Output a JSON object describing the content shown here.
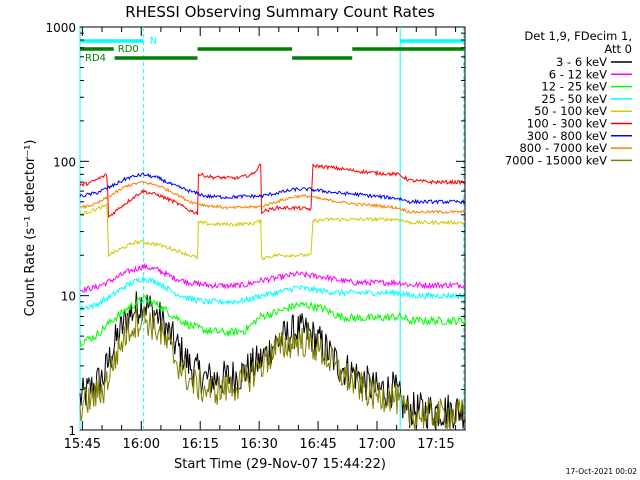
{
  "chart_data": {
    "type": "line",
    "title": "RHESSI Observing Summary Count Rates",
    "xlabel": "Start Time (29-Nov-07 15:44:22)",
    "ylabel": "Count Rate (s⁻¹ detector⁻¹)",
    "yscale": "log",
    "ylim": [
      1,
      1000
    ],
    "xlim_minutes": [
      0,
      98
    ],
    "y_ticks": [
      {
        "v": 1,
        "label": "1"
      },
      {
        "v": 10,
        "label": "10"
      },
      {
        "v": 100,
        "label": "100"
      },
      {
        "v": 1000,
        "label": "1000"
      }
    ],
    "x_ticks": [
      {
        "t": 0.6,
        "label": "15:45"
      },
      {
        "t": 15.6,
        "label": "16:00"
      },
      {
        "t": 30.6,
        "label": "16:15"
      },
      {
        "t": 45.6,
        "label": "16:30"
      },
      {
        "t": 60.6,
        "label": "16:45"
      },
      {
        "t": 75.6,
        "label": "17:00"
      },
      {
        "t": 90.6,
        "label": "17:15"
      }
    ],
    "legend_header": [
      "Det 1,9, FDecim 1,",
      "Att 0"
    ],
    "legend_position": "right",
    "footer": "17-Oct-2021 00:02",
    "flags": [
      {
        "label": "N",
        "color": "#00ffff",
        "row": 0,
        "segments": [
          [
            0,
            16.2
          ],
          [
            81.5,
            97.7
          ]
        ]
      },
      {
        "label": "RD0",
        "color": "#008000",
        "row": 1,
        "segments": [
          [
            0,
            8.6
          ]
        ]
      },
      {
        "label": "RD4",
        "color": "#008000",
        "row": 2,
        "segments": [
          [
            8.8,
            29.9
          ]
        ]
      },
      {
        "label": "",
        "color": "#008000",
        "row": 1,
        "segments": [
          [
            29.9,
            54
          ]
        ]
      },
      {
        "label": "",
        "color": "#008000",
        "row": 2,
        "segments": [
          [
            54,
            69.3
          ]
        ]
      },
      {
        "label": "",
        "color": "#008000",
        "row": 1,
        "segments": [
          [
            69.3,
            97.7
          ]
        ]
      }
    ],
    "vlines": [
      {
        "t": 0,
        "color": "#00ffff",
        "dash": false
      },
      {
        "t": 16.2,
        "color": "#00ffff",
        "dash": true
      },
      {
        "t": 81.5,
        "color": "#00ffff",
        "dash": false
      },
      {
        "t": 97.7,
        "color": "#00ffff",
        "dash": true
      }
    ],
    "series": [
      {
        "name": "3 - 6 keV",
        "color": "#000000",
        "noise": 0.32,
        "points": [
          [
            0,
            1.7
          ],
          [
            6,
            2.5
          ],
          [
            9,
            4.5
          ],
          [
            12,
            7
          ],
          [
            16,
            9
          ],
          [
            20,
            7
          ],
          [
            24,
            4.5
          ],
          [
            28,
            3
          ],
          [
            32,
            2.4
          ],
          [
            36,
            2.4
          ],
          [
            41,
            2.6
          ],
          [
            46,
            3.3
          ],
          [
            50,
            4.5
          ],
          [
            55,
            5.5
          ],
          [
            58,
            5.3
          ],
          [
            62,
            4.2
          ],
          [
            66,
            3
          ],
          [
            70,
            2.6
          ],
          [
            75,
            2
          ],
          [
            80,
            2
          ],
          [
            83,
            1.4
          ],
          [
            90,
            1.4
          ],
          [
            98,
            1.4
          ]
        ]
      },
      {
        "name": "6 - 12 keV",
        "color": "#ff00ff",
        "noise": 0.05,
        "points": [
          [
            0,
            11
          ],
          [
            4,
            11.5
          ],
          [
            8,
            13
          ],
          [
            12,
            15
          ],
          [
            16,
            16.5
          ],
          [
            20,
            15.5
          ],
          [
            24,
            13.5
          ],
          [
            28,
            12.5
          ],
          [
            32,
            12
          ],
          [
            38,
            11.8
          ],
          [
            42,
            12
          ],
          [
            46,
            13
          ],
          [
            50,
            13.5
          ],
          [
            55,
            14.5
          ],
          [
            58,
            14.2
          ],
          [
            62,
            13.8
          ],
          [
            66,
            13
          ],
          [
            70,
            12.5
          ],
          [
            75,
            12.5
          ],
          [
            81.5,
            12.5
          ],
          [
            84,
            12
          ],
          [
            90,
            12
          ],
          [
            98,
            12
          ]
        ]
      },
      {
        "name": "12 - 25 keV",
        "color": "#00ff00",
        "noise": 0.07,
        "points": [
          [
            0,
            4.5
          ],
          [
            4,
            5
          ],
          [
            8,
            6.5
          ],
          [
            12,
            8
          ],
          [
            16,
            9.5
          ],
          [
            20,
            8.5
          ],
          [
            24,
            7
          ],
          [
            28,
            6
          ],
          [
            32,
            5.5
          ],
          [
            38,
            5.3
          ],
          [
            42,
            5.5
          ],
          [
            46,
            7
          ],
          [
            50,
            7.5
          ],
          [
            55,
            8.5
          ],
          [
            58,
            8.5
          ],
          [
            62,
            8
          ],
          [
            66,
            7
          ],
          [
            70,
            6.8
          ],
          [
            75,
            6.8
          ],
          [
            81.5,
            7
          ],
          [
            84,
            6.5
          ],
          [
            90,
            6.5
          ],
          [
            98,
            6.5
          ]
        ]
      },
      {
        "name": "25 - 50 keV",
        "color": "#00ffff",
        "noise": 0.05,
        "points": [
          [
            0,
            8
          ],
          [
            4,
            8.5
          ],
          [
            8,
            10
          ],
          [
            12,
            12
          ],
          [
            16,
            13.5
          ],
          [
            20,
            12.5
          ],
          [
            24,
            10.5
          ],
          [
            28,
            9.5
          ],
          [
            32,
            9
          ],
          [
            38,
            9
          ],
          [
            42,
            9.2
          ],
          [
            46,
            10
          ],
          [
            50,
            10.5
          ],
          [
            55,
            11.5
          ],
          [
            58,
            11.2
          ],
          [
            62,
            10.8
          ],
          [
            66,
            10.5
          ],
          [
            70,
            10.5
          ],
          [
            75,
            10.5
          ],
          [
            81.5,
            10.5
          ],
          [
            84,
            10
          ],
          [
            90,
            10
          ],
          [
            98,
            10
          ]
        ]
      },
      {
        "name": "50 - 100 keV",
        "color": "#cccc00",
        "noise": 0.03,
        "points": [
          [
            0,
            40
          ],
          [
            3,
            43
          ],
          [
            7,
            47
          ],
          [
            7.1,
            20
          ],
          [
            10,
            22
          ],
          [
            14,
            25
          ],
          [
            16,
            25
          ],
          [
            20,
            24
          ],
          [
            24,
            22
          ],
          [
            28,
            20
          ],
          [
            30,
            19
          ],
          [
            30.1,
            35
          ],
          [
            34,
            34
          ],
          [
            40,
            34
          ],
          [
            44,
            34.5
          ],
          [
            46,
            36
          ],
          [
            46.1,
            19
          ],
          [
            50,
            20
          ],
          [
            55,
            20
          ],
          [
            59,
            20
          ],
          [
            59.1,
            36
          ],
          [
            64,
            37
          ],
          [
            70,
            37
          ],
          [
            75,
            37
          ],
          [
            81,
            37
          ],
          [
            84,
            35
          ],
          [
            90,
            35
          ],
          [
            98,
            35
          ]
        ]
      },
      {
        "name": "100 - 300 keV",
        "color": "#ff0000",
        "noise": 0.03,
        "points": [
          [
            0,
            66
          ],
          [
            3,
            70
          ],
          [
            7,
            80
          ],
          [
            7.1,
            38
          ],
          [
            10,
            45
          ],
          [
            14,
            55
          ],
          [
            16,
            60
          ],
          [
            20,
            56
          ],
          [
            24,
            50
          ],
          [
            28,
            43
          ],
          [
            30,
            41
          ],
          [
            30.1,
            80
          ],
          [
            34,
            76
          ],
          [
            40,
            75
          ],
          [
            44,
            80
          ],
          [
            46,
            95
          ],
          [
            46.1,
            42
          ],
          [
            50,
            45
          ],
          [
            55,
            45
          ],
          [
            59,
            44
          ],
          [
            59.1,
            93
          ],
          [
            64,
            90
          ],
          [
            70,
            85
          ],
          [
            75,
            82
          ],
          [
            81,
            80
          ],
          [
            84,
            72
          ],
          [
            90,
            70
          ],
          [
            98,
            70
          ]
        ]
      },
      {
        "name": "300 - 800 keV",
        "color": "#0000ff",
        "noise": 0.03,
        "points": [
          [
            0,
            55
          ],
          [
            4,
            58
          ],
          [
            8,
            65
          ],
          [
            12,
            75
          ],
          [
            16,
            80
          ],
          [
            20,
            75
          ],
          [
            24,
            66
          ],
          [
            28,
            60
          ],
          [
            32,
            55
          ],
          [
            38,
            54
          ],
          [
            42,
            55
          ],
          [
            46,
            55
          ],
          [
            50,
            58
          ],
          [
            55,
            62
          ],
          [
            58,
            62
          ],
          [
            62,
            60
          ],
          [
            66,
            58
          ],
          [
            70,
            57
          ],
          [
            75,
            55
          ],
          [
            81,
            53
          ],
          [
            84,
            50
          ],
          [
            90,
            50
          ],
          [
            98,
            50
          ]
        ]
      },
      {
        "name": "800 - 7000 keV",
        "color": "#ff8000",
        "noise": 0.025,
        "points": [
          [
            0,
            45
          ],
          [
            4,
            48
          ],
          [
            8,
            56
          ],
          [
            12,
            66
          ],
          [
            16,
            70
          ],
          [
            20,
            66
          ],
          [
            24,
            58
          ],
          [
            28,
            50
          ],
          [
            32,
            47
          ],
          [
            38,
            45
          ],
          [
            42,
            45.5
          ],
          [
            46,
            46
          ],
          [
            50,
            50
          ],
          [
            55,
            55
          ],
          [
            58,
            55
          ],
          [
            62,
            52
          ],
          [
            66,
            50
          ],
          [
            70,
            48
          ],
          [
            75,
            47
          ],
          [
            81,
            45
          ],
          [
            84,
            42
          ],
          [
            90,
            42
          ],
          [
            98,
            42
          ]
        ]
      },
      {
        "name": "7000 - 15000 keV",
        "color": "#808000",
        "noise": 0.28,
        "points": [
          [
            0,
            1.5
          ],
          [
            6,
            2
          ],
          [
            9,
            3.5
          ],
          [
            12,
            5.5
          ],
          [
            16,
            7
          ],
          [
            20,
            5.5
          ],
          [
            24,
            3.5
          ],
          [
            28,
            2.3
          ],
          [
            32,
            2
          ],
          [
            36,
            2
          ],
          [
            41,
            2.2
          ],
          [
            46,
            3
          ],
          [
            50,
            4
          ],
          [
            55,
            4.6
          ],
          [
            58,
            4.5
          ],
          [
            62,
            3.7
          ],
          [
            66,
            2.7
          ],
          [
            70,
            2.2
          ],
          [
            75,
            1.8
          ],
          [
            80,
            1.8
          ],
          [
            83,
            1.3
          ],
          [
            90,
            1.3
          ],
          [
            98,
            1.3
          ]
        ]
      }
    ]
  }
}
